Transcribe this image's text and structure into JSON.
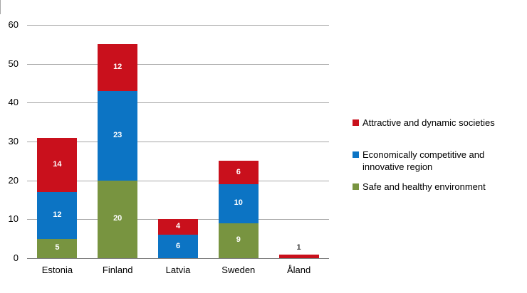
{
  "chart_data": {
    "type": "bar",
    "stacked": true,
    "categories": [
      "Estonia",
      "Finland",
      "Latvia",
      "Sweden",
      "Åland"
    ],
    "series": [
      {
        "name": "Safe and healthy environment",
        "color": "#789440",
        "values": [
          5,
          20,
          0,
          9,
          0
        ]
      },
      {
        "name": "Economically competitive and innovative region",
        "color": "#0c74c4",
        "values": [
          12,
          23,
          6,
          10,
          0
        ]
      },
      {
        "name": "Attractive and dynamic societies",
        "color": "#c9101c",
        "values": [
          14,
          12,
          4,
          6,
          1
        ]
      }
    ],
    "totals": [
      31,
      55,
      10,
      25,
      1
    ],
    "data_labels": "inside-center; labels on segments too small to fit are drawn above the bar",
    "yticks": [
      0,
      10,
      20,
      30,
      40,
      50,
      60
    ],
    "ylim": [
      0,
      60
    ],
    "xlabel": "",
    "ylabel": "",
    "title": "",
    "grid": true,
    "legend_position": "right",
    "legend_order_top_to_bottom": [
      "Attractive and dynamic societies",
      "Economically competitive and innovative region",
      "Safe and healthy environment"
    ]
  },
  "colors": {
    "background": "#ffffff",
    "gridline": "#a6a6a6",
    "axisline": "#808080",
    "inside_label": "#ffffff",
    "outside_label": "#404040",
    "text": "#000000"
  }
}
